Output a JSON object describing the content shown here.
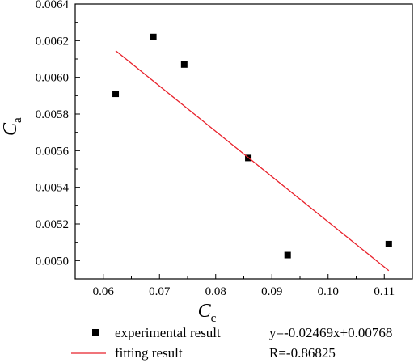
{
  "chart_data": {
    "type": "scatter",
    "title": "",
    "xlabel": {
      "main": "C",
      "sub": "c"
    },
    "ylabel": {
      "main": "C",
      "sub": "a"
    },
    "xlim": [
      0.055,
      0.115
    ],
    "ylim": [
      0.0049,
      0.0064
    ],
    "x_ticks": [
      0.06,
      0.07,
      0.08,
      0.09,
      0.1,
      0.11
    ],
    "x_tick_labels": [
      "0.06",
      "0.07",
      "0.08",
      "0.09",
      "0.10",
      "0.11"
    ],
    "y_ticks": [
      0.005,
      0.0052,
      0.0054,
      0.0056,
      0.0058,
      0.006,
      0.0062,
      0.0064
    ],
    "y_tick_labels": [
      "0.0050",
      "0.0052",
      "0.0054",
      "0.0056",
      "0.0058",
      "0.0060",
      "0.0062",
      "0.0064"
    ],
    "grid": false,
    "legend_position": "bottom",
    "series": [
      {
        "name": "experimental result",
        "kind": "scatter",
        "marker": "square",
        "color": "#000000",
        "points": [
          {
            "x": 0.0622,
            "y": 0.00591
          },
          {
            "x": 0.0689,
            "y": 0.00622
          },
          {
            "x": 0.0744,
            "y": 0.00607
          },
          {
            "x": 0.0858,
            "y": 0.00556
          },
          {
            "x": 0.0928,
            "y": 0.00503
          },
          {
            "x": 0.1108,
            "y": 0.00509
          }
        ]
      },
      {
        "name": "fitting result",
        "kind": "line",
        "color": "#e8202a",
        "points": [
          {
            "x": 0.0622,
            "y": 0.006145
          },
          {
            "x": 0.1108,
            "y": 0.004945
          }
        ]
      }
    ],
    "annotations": {
      "equation": "y=-0.02469x+0.00768",
      "r_value": "R=-0.86825"
    }
  }
}
